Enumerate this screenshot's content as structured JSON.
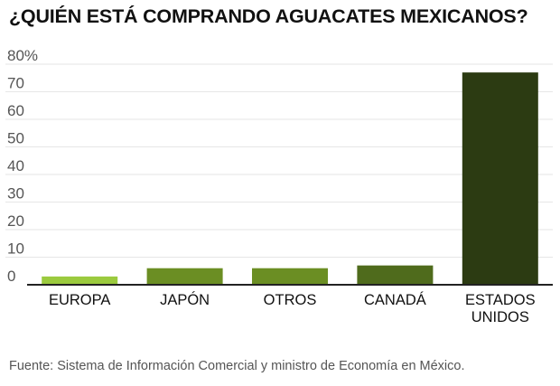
{
  "title": "¿QUIÉN ESTÁ COMPRANDO AGUACATES MEXICANOS?",
  "source": "Fuente: Sistema de Información Comercial y ministro de Economía en México.",
  "colors": {
    "gridline": "#e6e6e6",
    "baseline": "#222222",
    "bars": [
      "#9bca3e",
      "#6b8e23",
      "#6b8e23",
      "#4f6b1c",
      "#2c3b12"
    ]
  },
  "chart_data": {
    "type": "bar",
    "title": "¿QUIÉN ESTÁ COMPRANDO AGUACATES MEXICANOS?",
    "categories": [
      [
        "EUROPA"
      ],
      [
        "JAPÓN"
      ],
      [
        "OTROS"
      ],
      [
        "CANADÁ"
      ],
      [
        "ESTADOS",
        "UNIDOS"
      ]
    ],
    "values": [
      3,
      6,
      6,
      7,
      77
    ],
    "ylim": [
      0,
      80
    ],
    "yticks": [
      "0",
      "10",
      "20",
      "30",
      "40",
      "50",
      "60",
      "70",
      "80%"
    ],
    "grid": true,
    "xlabel": "",
    "ylabel": ""
  }
}
